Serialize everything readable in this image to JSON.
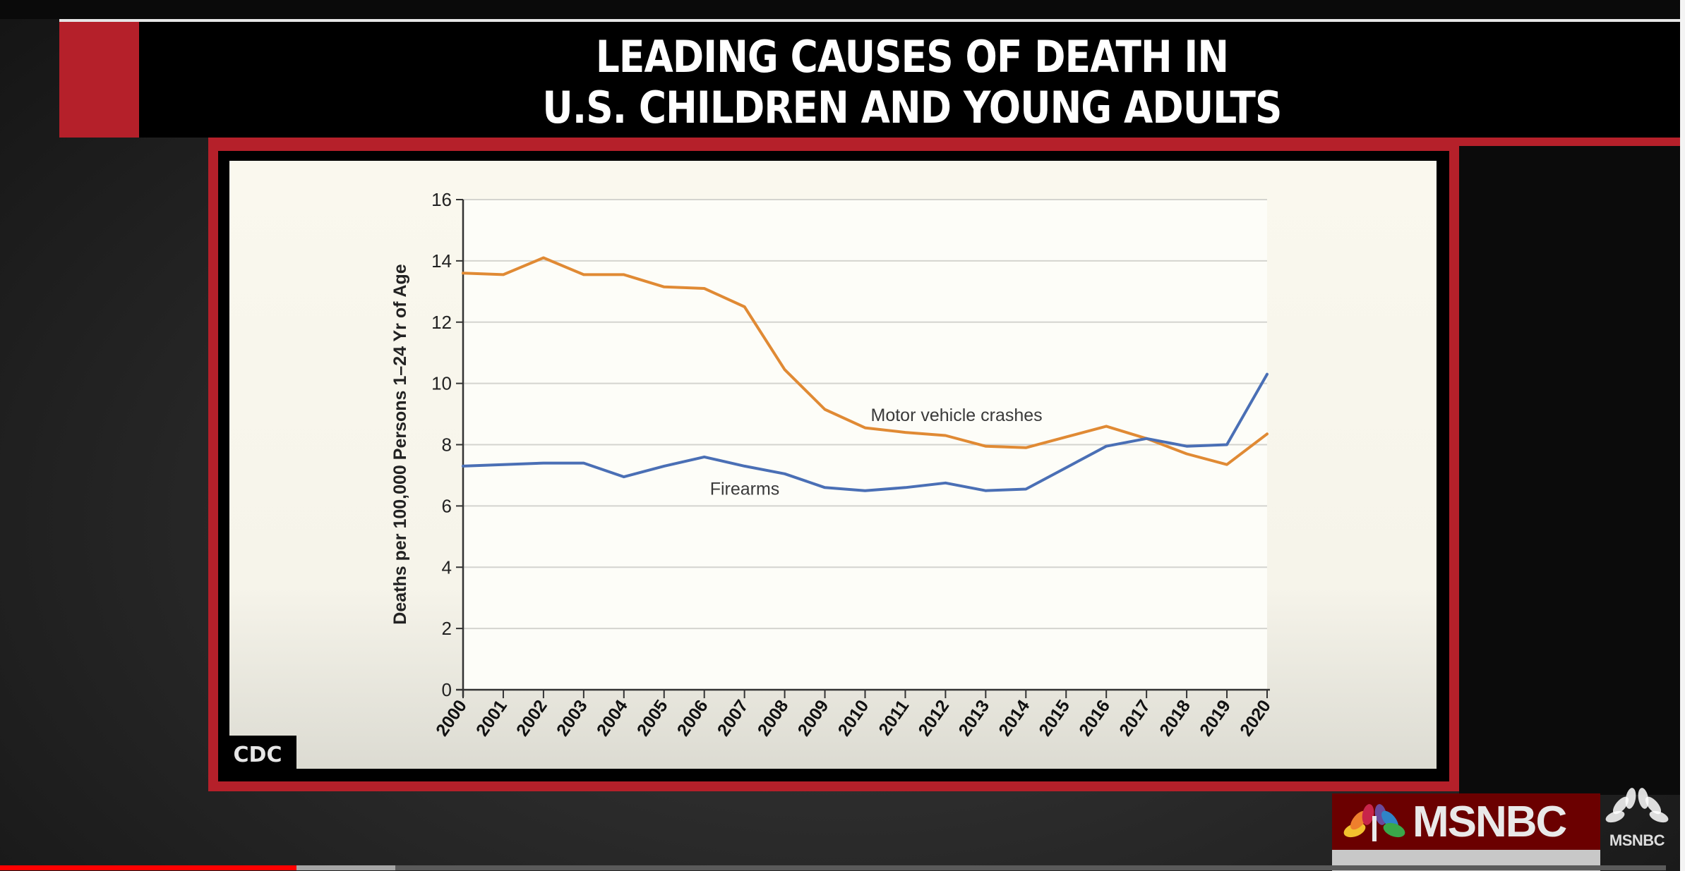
{
  "header": {
    "title_line1": "LEADING CAUSES OF DEATH IN",
    "title_line2": "U.S. CHILDREN AND YOUNG ADULTS",
    "accent_color": "#b5202a"
  },
  "source_badge": {
    "label": "CDC"
  },
  "branding": {
    "logo_text": "MSNBC",
    "bug_text": "MSNBC",
    "brand_color": "#6b0000"
  },
  "player": {
    "progress_percent": 17.8,
    "buffered_percent": 23.5,
    "played_color": "#ff0000"
  },
  "chart_data": {
    "type": "line",
    "title": "Leading Causes of Death in U.S. Children and Young Adults",
    "xlabel": "",
    "ylabel": "Deaths per 100,000 Persons 1–24 Yr of Age",
    "ylim": [
      0,
      16
    ],
    "yticks": [
      0,
      2,
      4,
      6,
      8,
      10,
      12,
      14,
      16
    ],
    "grid": true,
    "legend_position": "inline labels",
    "x": [
      "2000",
      "2001",
      "2002",
      "2003",
      "2004",
      "2005",
      "2006",
      "2007",
      "2008",
      "2009",
      "2010",
      "2011",
      "2012",
      "2013",
      "2014",
      "2015",
      "2016",
      "2017",
      "2018",
      "2019",
      "2020"
    ],
    "series": [
      {
        "name": "Motor vehicle crashes",
        "color": "#e08a34",
        "values": [
          13.6,
          13.55,
          14.1,
          13.55,
          13.55,
          13.15,
          13.1,
          12.5,
          10.45,
          9.15,
          8.55,
          8.4,
          8.3,
          7.95,
          7.9,
          8.25,
          8.6,
          8.2,
          7.7,
          7.35,
          8.35
        ]
      },
      {
        "name": "Firearms",
        "color": "#4a6fb5",
        "values": [
          7.3,
          7.35,
          7.4,
          7.4,
          6.95,
          7.3,
          7.6,
          7.3,
          7.05,
          6.6,
          6.5,
          6.6,
          6.75,
          6.5,
          6.55,
          7.25,
          7.95,
          8.2,
          7.95,
          8.0,
          10.3
        ]
      }
    ],
    "annotations": [
      {
        "text": "Motor vehicle crashes",
        "x": "2010",
        "y": 9.0
      },
      {
        "text": "Firearms",
        "x": "2006",
        "y": 6.6
      }
    ]
  }
}
